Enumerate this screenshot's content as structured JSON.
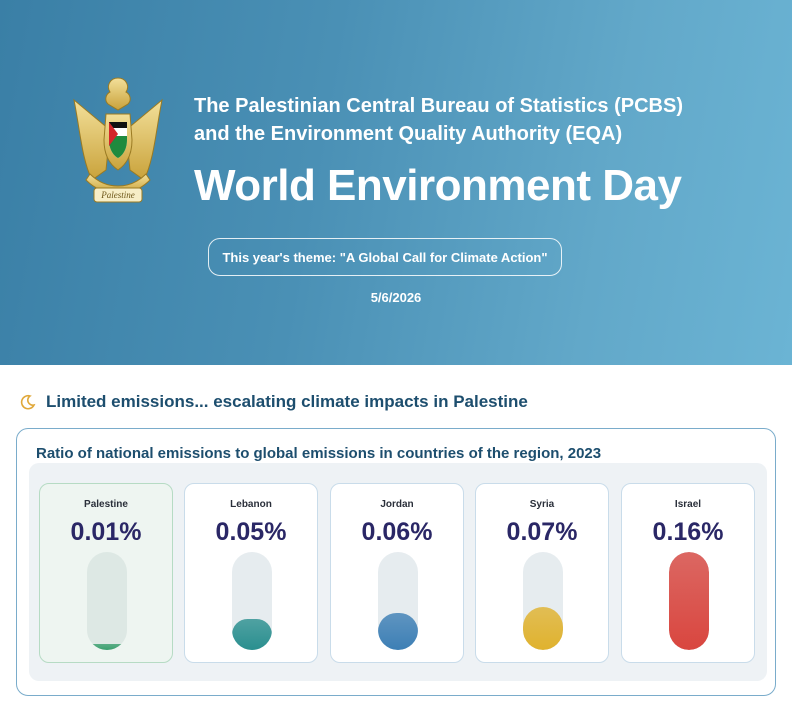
{
  "header": {
    "org_line1": "The Palestinian Central Bureau of Statistics (PCBS)",
    "org_line2": "and the Environment Quality Authority (EQA)",
    "title": "World Environment Day",
    "theme": "This year's theme: \"A Global Call for Climate Action\"",
    "date": "5/6/2026",
    "emblem_text": "Palestine"
  },
  "section": {
    "heading": "Limited emissions... escalating climate impacts in Palestine",
    "icon": "crescent-icon"
  },
  "chart_data": {
    "type": "bar",
    "title": "Ratio of national emissions to global emissions in countries of the region, 2023",
    "categories": [
      "Palestine",
      "Lebanon",
      "Jordan",
      "Syria",
      "Israel"
    ],
    "labels": [
      "0.01%",
      "0.05%",
      "0.06%",
      "0.07%",
      "0.16%"
    ],
    "values": [
      0.01,
      0.05,
      0.06,
      0.07,
      0.16
    ],
    "ylim": [
      0,
      0.16
    ],
    "colors": [
      "#3a9f6e",
      "#2a8f8f",
      "#3d7fb5",
      "#e0b22e",
      "#d9463f"
    ]
  },
  "colors": {
    "hero_start": "#3a7fa6",
    "hero_end": "#6bb4d4",
    "heading": "#1d4e6e",
    "value_text": "#2a2766",
    "accent_icon": "#e0a83a"
  }
}
